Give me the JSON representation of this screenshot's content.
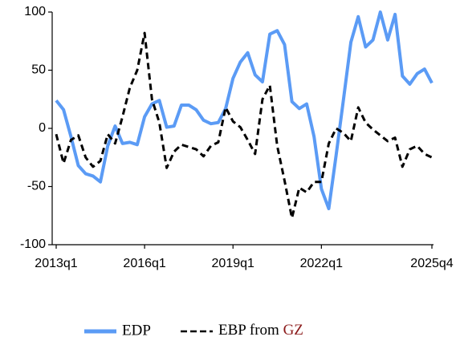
{
  "chart_data": {
    "type": "line",
    "categories": [
      "2013q1",
      null,
      null,
      null,
      null,
      null,
      null,
      null,
      null,
      null,
      null,
      null,
      "2016q1",
      null,
      null,
      null,
      null,
      null,
      null,
      null,
      null,
      null,
      null,
      null,
      "2019q1",
      null,
      null,
      null,
      null,
      null,
      null,
      null,
      null,
      null,
      null,
      null,
      "2022q1",
      null,
      null,
      null,
      null,
      null,
      null,
      null,
      null,
      null,
      null,
      null,
      null,
      null,
      null,
      "2025q4"
    ],
    "series": [
      {
        "name": "EDP",
        "color": "#5b9bf5",
        "dash": false,
        "values": [
          24,
          16,
          -7,
          -32,
          -39,
          -41,
          -46,
          -15,
          2,
          -13,
          -12,
          -14,
          10,
          21,
          24,
          1,
          2,
          20,
          20,
          16,
          7,
          4,
          5,
          17,
          43,
          57,
          65,
          46,
          40,
          81,
          84,
          72,
          23,
          17,
          21,
          -7,
          -52,
          -69,
          -23,
          25,
          74,
          96,
          70,
          76,
          100,
          76,
          98,
          45,
          38,
          47,
          51,
          39
        ]
      },
      {
        "name": "EBP from GZ",
        "color": "#000000",
        "dash": true,
        "name_accent_color": "#8b1a1a",
        "values": [
          -5,
          -30,
          -10,
          -6,
          -25,
          -33,
          -28,
          -5,
          -13,
          10,
          35,
          50,
          82,
          25,
          5,
          -34,
          -20,
          -14,
          -16,
          -18,
          -24,
          -15,
          -12,
          18,
          6,
          1,
          -10,
          -22,
          25,
          37,
          -15,
          -45,
          -77,
          -51,
          -55,
          -46,
          -46,
          -13,
          0,
          -4,
          -11,
          18,
          5,
          -1,
          -6,
          -11,
          -8,
          -33,
          -18,
          -15,
          -22,
          -25
        ]
      }
    ],
    "ylim": [
      -100,
      100
    ],
    "yticks": [
      -100,
      -50,
      0,
      50,
      100
    ],
    "grid": false,
    "legend": "bottom"
  }
}
